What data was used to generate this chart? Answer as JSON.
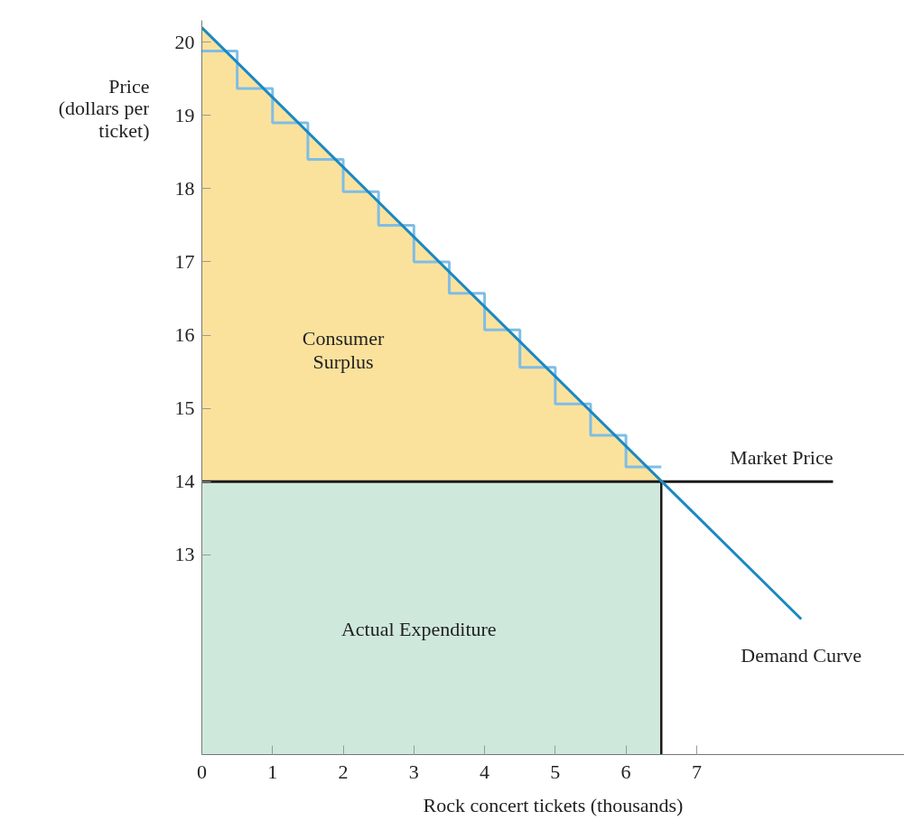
{
  "chart_data": {
    "type": "line",
    "xlabel": "Rock concert tickets (thousands)",
    "ylabel": "Price (dollars per ticket)",
    "xlim": [
      0,
      9.94
    ],
    "ylim": [
      10.27,
      20.3
    ],
    "xticks": [
      0,
      1,
      2,
      3,
      4,
      5,
      6,
      7
    ],
    "yticks": [
      13,
      14,
      15,
      16,
      17,
      18,
      19,
      20
    ],
    "grid": false,
    "legend": false,
    "series": [
      {
        "type": "area",
        "color": "#fbe29c",
        "x": [
          0,
          6.5
        ],
        "values": [
          20.2,
          14
        ]
      },
      {
        "type": "area",
        "color": "#cfe8dc",
        "x": [
          0,
          6.5
        ],
        "values": [
          14,
          14
        ]
      },
      {
        "type": "step",
        "color": "#7fbde6",
        "x": [
          0,
          0.5,
          1,
          1.5,
          2,
          2.5,
          3,
          3.5,
          4,
          4.5,
          5,
          5.5,
          6,
          6.5
        ],
        "values": [
          19.88,
          19.37,
          18.9,
          18.4,
          17.96,
          17.5,
          17.0,
          16.57,
          16.07,
          15.56,
          15.06,
          14.63,
          14.2,
          14.2
        ]
      },
      {
        "type": "line",
        "name": "Market Price",
        "color": "#1a1a1a",
        "x": [
          0,
          8.93
        ],
        "values": [
          14,
          14
        ]
      },
      {
        "type": "line",
        "color": "#1a1a1a",
        "x": [
          6.5,
          6.5
        ],
        "values": [
          14,
          10.27
        ]
      },
      {
        "type": "line",
        "name": "Demand Curve",
        "color": "#1a88c2",
        "x": [
          0,
          8.48
        ],
        "values": [
          20.2,
          12.12
        ]
      }
    ],
    "annotations": [
      "Consumer Surplus",
      "Actual Expenditure"
    ]
  }
}
